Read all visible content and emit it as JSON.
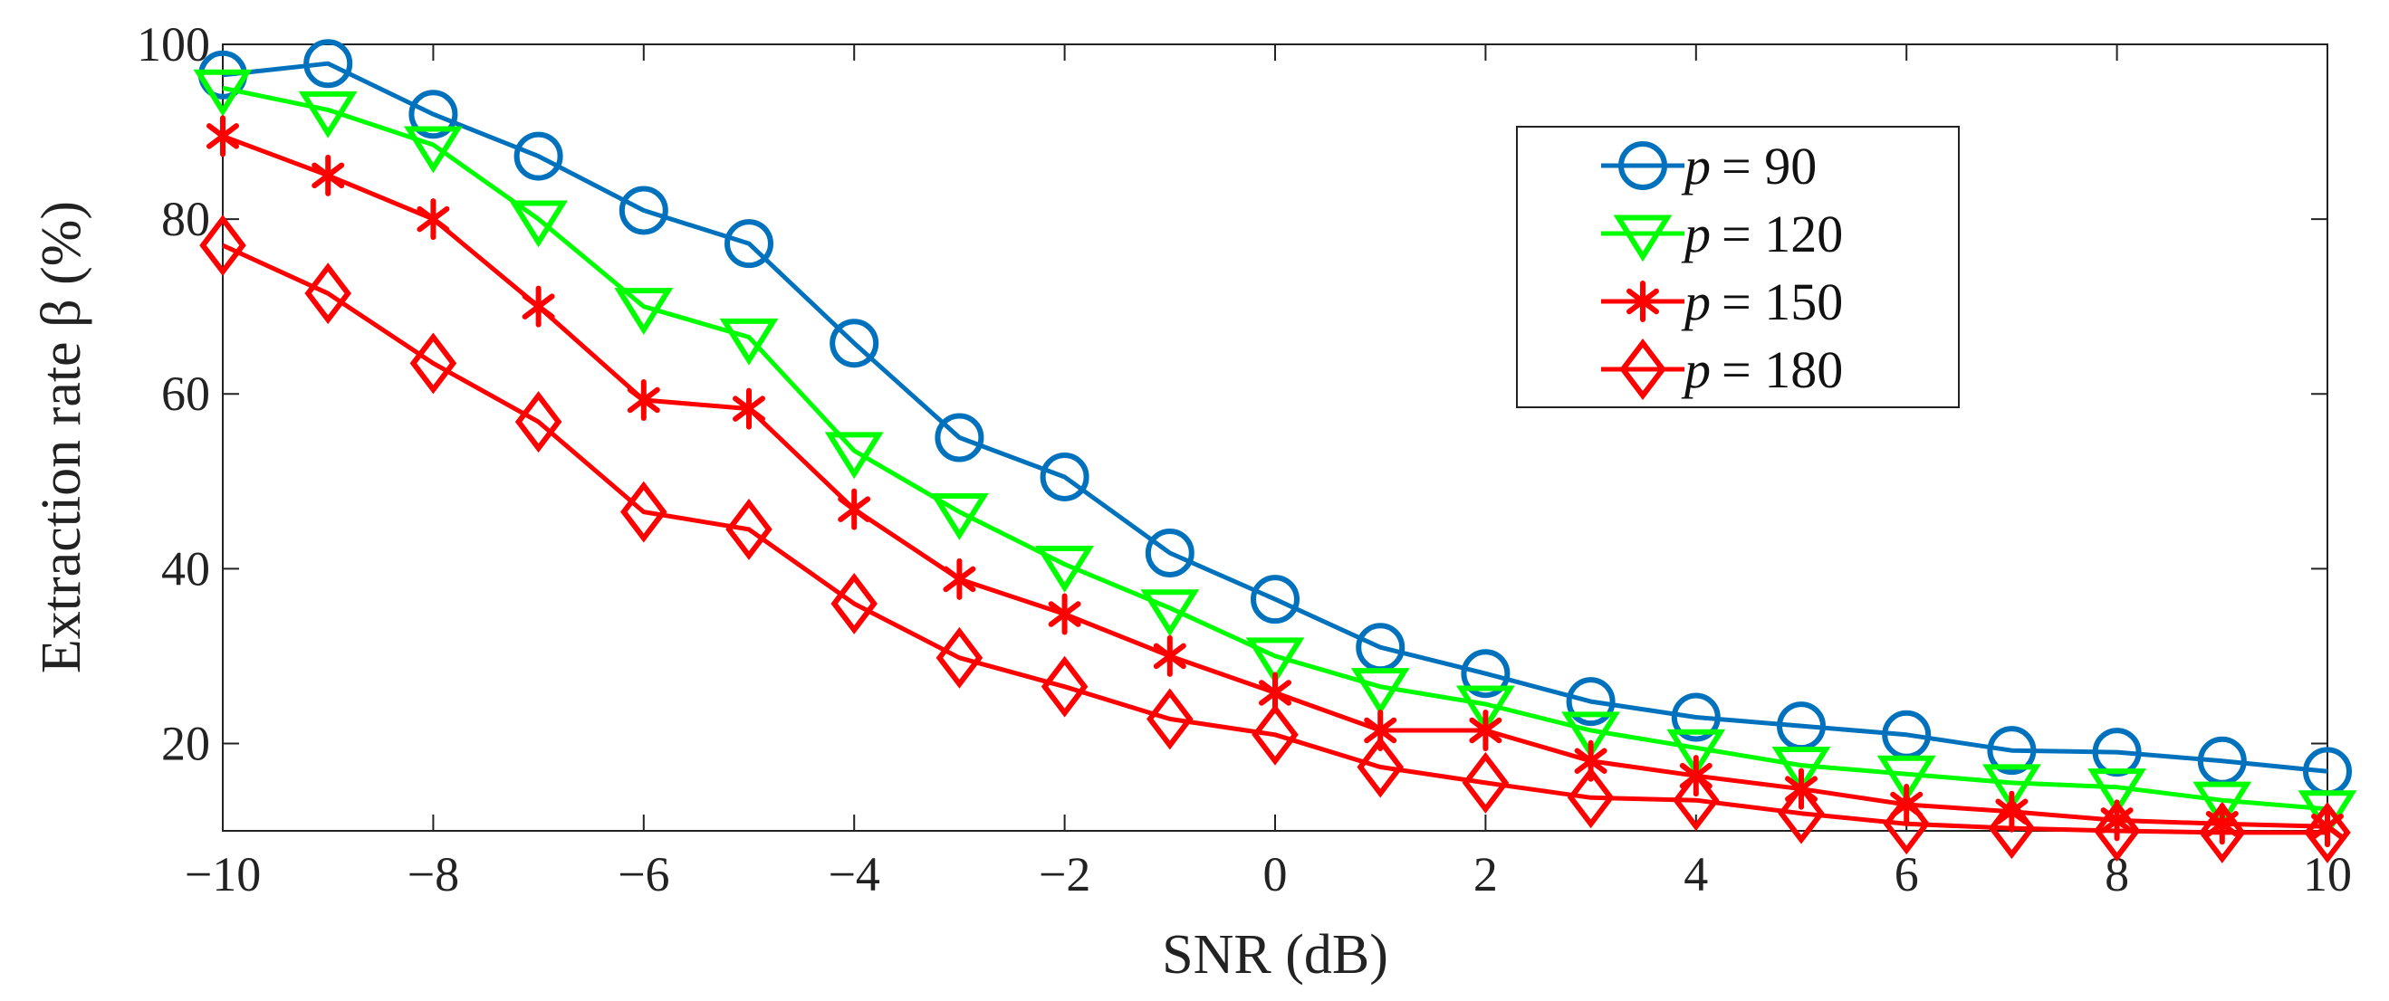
{
  "chart_data": {
    "type": "line",
    "title": "",
    "xlabel": "SNR (dB)",
    "ylabel": "Extraction rate β (%)",
    "xlim": [
      -10,
      10
    ],
    "ylim": [
      10,
      100
    ],
    "xticks": [
      "−10",
      "−8",
      "−6",
      "−4",
      "−2",
      "0",
      "2",
      "4",
      "6",
      "8",
      "10"
    ],
    "yticks": [
      "20",
      "40",
      "60",
      "80",
      "100"
    ],
    "legend_position": "top-right",
    "x": [
      -10,
      -9,
      -8,
      -7,
      -6,
      -5,
      -4,
      -3,
      -2,
      -1,
      0,
      1,
      2,
      3,
      4,
      5,
      6,
      7,
      8,
      9,
      10
    ],
    "series": [
      {
        "name": "p = 90",
        "var": "p",
        "rhs": "= 90",
        "color": "#0072BD",
        "marker": "circle",
        "values": [
          96.5,
          97.8,
          92.0,
          87.2,
          81.0,
          77.2,
          65.8,
          55.0,
          50.5,
          41.8,
          36.5,
          31.0,
          28.0,
          24.8,
          23.0,
          22.0,
          21.0,
          19.2,
          19.0,
          18.0,
          16.8
        ]
      },
      {
        "name": "p = 120",
        "var": "p",
        "rhs": "= 120",
        "color": "#00FF00",
        "marker": "triangle-down",
        "values": [
          95.0,
          92.5,
          88.5,
          80.0,
          70.0,
          66.5,
          53.5,
          46.5,
          40.5,
          35.5,
          30.0,
          26.5,
          24.5,
          21.5,
          19.5,
          17.5,
          16.5,
          15.5,
          15.0,
          13.5,
          12.5
        ]
      },
      {
        "name": "p = 150",
        "var": "p",
        "rhs": "= 150",
        "color": "#FF0000",
        "marker": "asterisk",
        "values": [
          89.5,
          85.0,
          80.0,
          70.0,
          59.3,
          58.3,
          46.8,
          38.8,
          34.8,
          30.0,
          25.8,
          21.5,
          21.5,
          18.0,
          16.3,
          14.8,
          13.0,
          12.2,
          11.2,
          10.8,
          10.5
        ]
      },
      {
        "name": "p = 180",
        "var": "p",
        "rhs": "= 180",
        "color": "#FF0000",
        "marker": "diamond",
        "values": [
          77.0,
          71.5,
          63.5,
          56.8,
          46.5,
          44.5,
          36.0,
          29.8,
          26.5,
          22.8,
          21.0,
          17.3,
          15.5,
          13.8,
          13.5,
          12.0,
          10.8,
          10.3,
          10.0,
          9.8,
          9.8
        ]
      }
    ]
  }
}
